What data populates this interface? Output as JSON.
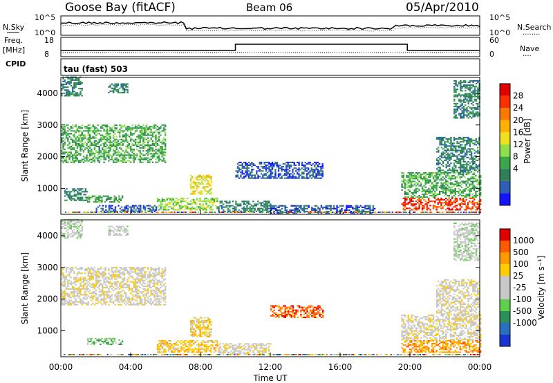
{
  "header": {
    "station": "Goose Bay (fitACF)",
    "beam": "Beam 06",
    "date": "05/Apr/2010"
  },
  "strip_labels": {
    "nsky": "N.Sky",
    "nsearch": "N.Search",
    "freq_top": "Freq.",
    "freq_unit": "[MHz]",
    "cpid": "CPID",
    "nave": "Nave",
    "dots_nsearch": "........",
    "dots_nave": "....",
    "tau": "tau (fast) 503"
  },
  "noise_panel": {
    "left_ticks": [
      "10^5",
      "10^0"
    ],
    "right_ticks": [
      "10^5",
      "10^0"
    ]
  },
  "freq_panel": {
    "left_ticks": [
      "18",
      "8"
    ],
    "right_ticks": [
      "60",
      "0"
    ]
  },
  "chart_data": [
    {
      "type": "heatmap",
      "name": "Power",
      "ylabel": "Slant Range [km]",
      "yticks": [
        "4000",
        "3000",
        "2000",
        "1000"
      ],
      "ylim": [
        180,
        4500
      ],
      "colorbar_label": "Power [dB]",
      "colorbar_ticks": [
        "28",
        "24",
        "20",
        "16",
        "12",
        "8",
        "4"
      ],
      "colorbar_colors": [
        "#1414ff",
        "#2e5fb5",
        "#2e7f5a",
        "#3aa84a",
        "#8ee04a",
        "#f0e020",
        "#ffb000",
        "#ff7800",
        "#ff3000",
        "#e00000"
      ],
      "regions": [
        {
          "t0": 0.0,
          "t1": 1.2,
          "r0": 3900,
          "r1": 4500,
          "level": 2
        },
        {
          "t0": 2.7,
          "t1": 3.8,
          "r0": 4000,
          "r1": 4300,
          "level": 2
        },
        {
          "t0": 0.0,
          "t1": 6.0,
          "r0": 1800,
          "r1": 3000,
          "level": 3
        },
        {
          "t0": 0.2,
          "t1": 1.5,
          "r0": 600,
          "r1": 1000,
          "level": 2
        },
        {
          "t0": 1.5,
          "t1": 3.5,
          "r0": 550,
          "r1": 750,
          "level": 3
        },
        {
          "t0": 2.0,
          "t1": 5.5,
          "r0": 250,
          "r1": 450,
          "level": 1
        },
        {
          "t0": 5.5,
          "t1": 9.0,
          "r0": 300,
          "r1": 700,
          "level": 4
        },
        {
          "t0": 7.4,
          "t1": 8.6,
          "r0": 800,
          "r1": 1400,
          "level": 5
        },
        {
          "t0": 9.0,
          "t1": 12.0,
          "r0": 250,
          "r1": 600,
          "level": 2
        },
        {
          "t0": 12.0,
          "t1": 18.0,
          "r0": 200,
          "r1": 450,
          "level": 1
        },
        {
          "t0": 10.0,
          "t1": 15.0,
          "r0": 1300,
          "r1": 1800,
          "level": 1
        },
        {
          "t0": 19.5,
          "t1": 24.0,
          "r0": 300,
          "r1": 700,
          "level": 8
        },
        {
          "t0": 19.5,
          "t1": 24.0,
          "r0": 700,
          "r1": 1500,
          "level": 3
        },
        {
          "t0": 21.5,
          "t1": 24.0,
          "r0": 1500,
          "r1": 2600,
          "level": 2
        },
        {
          "t0": 22.5,
          "t1": 24.0,
          "r0": 3200,
          "r1": 4400,
          "level": 2
        }
      ]
    },
    {
      "type": "heatmap",
      "name": "Velocity",
      "ylabel": "Slant Range [km]",
      "yticks": [
        "4000",
        "3000",
        "2000",
        "1000"
      ],
      "ylim": [
        180,
        4500
      ],
      "colorbar_label": "Velocity [m s⁻¹]",
      "colorbar_ticks": [
        "1000",
        "500",
        "100",
        "25",
        "-25",
        "-100",
        "-500",
        "-1000"
      ],
      "colorbar_colors": [
        "#1a34d0",
        "#2a6fc0",
        "#2e8f5a",
        "#5fd04a",
        "#c8c8c8",
        "#c8c8c8",
        "#ffcc00",
        "#ff9a00",
        "#ff5a00",
        "#e00000"
      ],
      "regions": [
        {
          "t0": 0.0,
          "t1": 1.2,
          "r0": 3900,
          "r1": 4500,
          "level": 4
        },
        {
          "t0": 2.7,
          "t1": 3.8,
          "r0": 4000,
          "r1": 4300,
          "level": 4
        },
        {
          "t0": 0.0,
          "t1": 6.0,
          "r0": 1800,
          "r1": 3000,
          "level": 5
        },
        {
          "t0": 1.5,
          "t1": 3.5,
          "r0": 550,
          "r1": 750,
          "level": 3
        },
        {
          "t0": 5.5,
          "t1": 9.0,
          "r0": 300,
          "r1": 700,
          "level": 6
        },
        {
          "t0": 7.4,
          "t1": 8.6,
          "r0": 800,
          "r1": 1400,
          "level": 6
        },
        {
          "t0": 9.0,
          "t1": 12.0,
          "r0": 250,
          "r1": 600,
          "level": 5
        },
        {
          "t0": 12.0,
          "t1": 15.0,
          "r0": 1400,
          "r1": 1800,
          "level": 8
        },
        {
          "t0": 19.5,
          "t1": 24.0,
          "r0": 300,
          "r1": 700,
          "level": 7
        },
        {
          "t0": 19.5,
          "t1": 24.0,
          "r0": 700,
          "r1": 1500,
          "level": 5
        },
        {
          "t0": 21.5,
          "t1": 24.0,
          "r0": 1500,
          "r1": 2600,
          "level": 5
        },
        {
          "t0": 22.5,
          "t1": 24.0,
          "r0": 3200,
          "r1": 4400,
          "level": 4
        }
      ]
    }
  ],
  "time_axis": {
    "label": "Time UT",
    "ticks": [
      "00:00",
      "04:00",
      "08:00",
      "12:00",
      "16:00",
      "20:00",
      "00:00"
    ]
  }
}
